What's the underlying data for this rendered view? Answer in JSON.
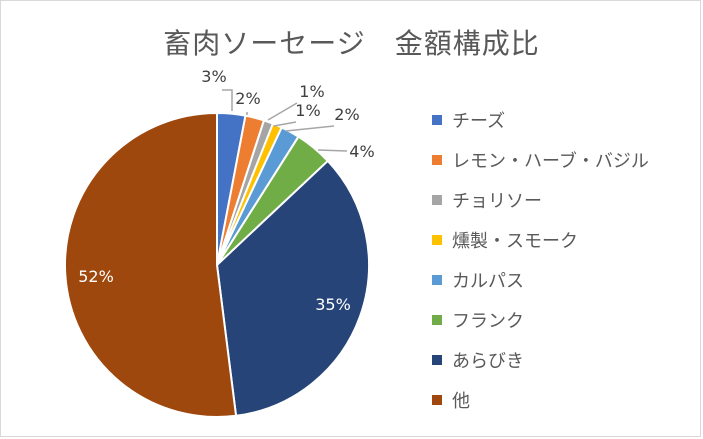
{
  "chart_data": {
    "type": "pie",
    "title": "畜肉ソーセージ　金額構成比",
    "categories": [
      "チーズ",
      "レモン・ハーブ・バジル",
      "チョリソー",
      "燻製・スモーク",
      "カルパス",
      "フランク",
      "あらびき",
      "他"
    ],
    "values": [
      3,
      2,
      1,
      1,
      2,
      4,
      35,
      52
    ],
    "data_labels": [
      "3%",
      "2%",
      "1%",
      "1%",
      "2%",
      "4%",
      "35%",
      "52%"
    ],
    "colors": [
      "#4472C4",
      "#ED7D31",
      "#A5A5A5",
      "#FFC000",
      "#5B9BD5",
      "#70AD47",
      "#264478",
      "#9E480E"
    ],
    "legend_position": "right",
    "start_angle": "12 o'clock, clockwise"
  }
}
